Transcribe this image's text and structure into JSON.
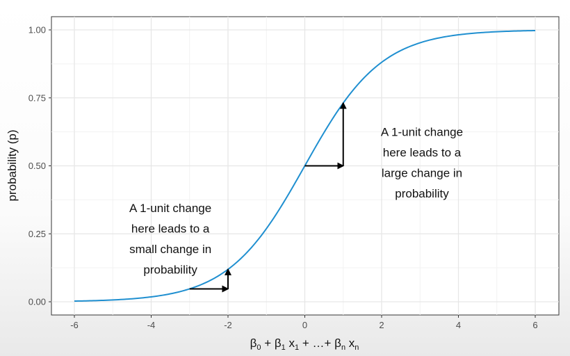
{
  "chart_data": {
    "type": "line",
    "title": "",
    "xlabel": "β0 + β1 x1 + …+ βn xn",
    "xlabel_parts": {
      "b0": "β",
      "b0_sub": "0",
      "plus1": " + ",
      "b1": "β",
      "b1_sub": "1",
      "x1": " x",
      "x1_sub": "1",
      "mid": " + …+ ",
      "bn": "β",
      "bn_sub": "n",
      "xn": " x",
      "xn_sub": "n"
    },
    "ylabel": "probability (p)",
    "xlim": [
      -6,
      6
    ],
    "ylim": [
      0,
      1
    ],
    "x_ticks": [
      -6,
      -4,
      -2,
      0,
      2,
      4,
      6
    ],
    "x_tick_labels": [
      "-6",
      "-4",
      "-2",
      "0",
      "2",
      "4",
      "6"
    ],
    "y_ticks": [
      0,
      0.25,
      0.5,
      0.75,
      1
    ],
    "y_tick_labels": [
      "0.00",
      "0.25",
      "0.50",
      "0.75",
      "1.00"
    ],
    "grid": true,
    "series": [
      {
        "function": "logistic",
        "x_range": [
          -6,
          6
        ],
        "color": "#1f8fd0"
      }
    ],
    "step_arrows": [
      {
        "x_from": -3,
        "x_to": -2
      },
      {
        "x_from": 0,
        "x_to": 1
      }
    ],
    "annotations": [
      {
        "lines": [
          "A 1-unit change",
          "here leads to a",
          "small change in",
          "probability"
        ],
        "x": -3.5,
        "y": 0.33
      },
      {
        "lines": [
          "A 1-unit change",
          "here leads to a",
          "large change in",
          "probability"
        ],
        "x": 3.05,
        "y": 0.61
      }
    ],
    "colors": {
      "panel": "#ffffff",
      "grid": "#e6e6e6",
      "border": "#333333",
      "arrow": "#000000"
    }
  }
}
